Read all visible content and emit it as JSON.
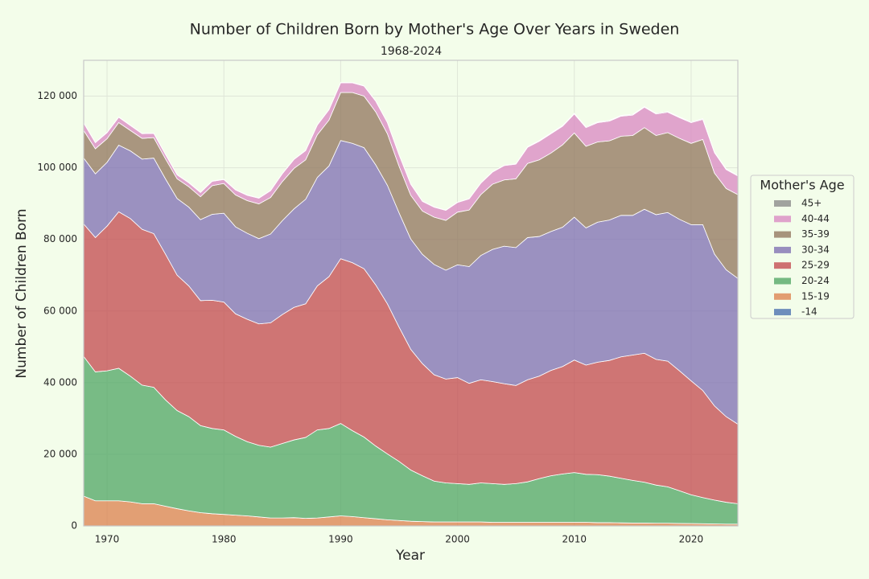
{
  "chart_data": {
    "type": "stacked_area",
    "title": "Number of Children Born by Mother's Age Over Years in Sweden",
    "subtitle": "1968-2024",
    "x_label": "Year",
    "y_label": "Number of Children Born",
    "legend_title": "Mother's Age",
    "legend_position": "right",
    "grid": true,
    "xlim": [
      1968,
      2024
    ],
    "xticks": [
      1970,
      1980,
      1990,
      2000,
      2010,
      2020
    ],
    "ylim": [
      0,
      130000
    ],
    "yticks": [
      0,
      {
        "value": 20000,
        "label": "20 000"
      },
      {
        "value": 40000,
        "label": "40 000"
      },
      {
        "value": 60000,
        "label": "60 000"
      },
      {
        "value": 80000,
        "label": "80 000"
      },
      {
        "value": 100000,
        "label": "100 000"
      },
      {
        "value": 120000,
        "label": "120 000"
      }
    ],
    "x": [
      1968,
      1969,
      1970,
      1971,
      1972,
      1973,
      1974,
      1975,
      1976,
      1977,
      1978,
      1979,
      1980,
      1981,
      1982,
      1983,
      1984,
      1985,
      1986,
      1987,
      1988,
      1989,
      1990,
      1991,
      1992,
      1993,
      1994,
      1995,
      1996,
      1997,
      1998,
      1999,
      2000,
      2001,
      2002,
      2003,
      2004,
      2005,
      2006,
      2007,
      2008,
      2009,
      2010,
      2011,
      2012,
      2013,
      2014,
      2015,
      2016,
      2017,
      2018,
      2019,
      2020,
      2021,
      2022,
      2023,
      2024
    ],
    "series": [
      {
        "name": "-14",
        "color": "#4c72b0",
        "values": [
          10,
          10,
          10,
          10,
          10,
          10,
          10,
          10,
          10,
          10,
          10,
          10,
          10,
          10,
          10,
          10,
          10,
          10,
          10,
          10,
          10,
          10,
          10,
          10,
          10,
          10,
          10,
          10,
          10,
          10,
          10,
          10,
          10,
          10,
          10,
          10,
          10,
          10,
          10,
          10,
          10,
          10,
          10,
          10,
          10,
          10,
          10,
          10,
          10,
          10,
          10,
          10,
          10,
          10,
          10,
          10,
          10
        ]
      },
      {
        "name": "15-19",
        "color": "#dd8452",
        "values": [
          8300,
          7000,
          7000,
          7000,
          6700,
          6200,
          6200,
          5500,
          4800,
          4200,
          3700,
          3400,
          3200,
          3000,
          2800,
          2500,
          2200,
          2200,
          2300,
          2100,
          2200,
          2500,
          2800,
          2600,
          2300,
          2000,
          1700,
          1500,
          1300,
          1200,
          1100,
          1100,
          1100,
          1100,
          1100,
          1000,
          1000,
          1000,
          1000,
          1000,
          1000,
          1000,
          1000,
          1000,
          900,
          900,
          850,
          800,
          800,
          750,
          750,
          700,
          650,
          600,
          550,
          500,
          500
        ]
      },
      {
        "name": "20-24",
        "color": "#55a868",
        "values": [
          39000,
          36000,
          36300,
          37000,
          35100,
          33100,
          32500,
          29700,
          27400,
          26300,
          24300,
          23800,
          23600,
          22000,
          20700,
          20000,
          19800,
          20800,
          21700,
          22600,
          24600,
          24700,
          25800,
          24000,
          22500,
          20300,
          18400,
          16500,
          14300,
          12800,
          11400,
          10900,
          10700,
          10500,
          10900,
          10800,
          10600,
          10800,
          11300,
          12200,
          13000,
          13500,
          13900,
          13400,
          13400,
          13000,
          12450,
          11900,
          11400,
          10650,
          10150,
          9100,
          8050,
          7300,
          6650,
          6100,
          5700
        ]
      },
      {
        "name": "25-29",
        "color": "#c44e52",
        "values": [
          37000,
          37500,
          40400,
          43700,
          44000,
          43500,
          42900,
          40700,
          37800,
          36500,
          34900,
          35800,
          35700,
          34200,
          34200,
          33900,
          34700,
          36000,
          37000,
          37300,
          40200,
          42400,
          46000,
          46900,
          47000,
          45000,
          41900,
          37500,
          33700,
          31300,
          29700,
          29000,
          29600,
          28200,
          28800,
          28500,
          28100,
          27400,
          28500,
          28600,
          29400,
          30000,
          31400,
          30500,
          31400,
          32300,
          33900,
          35000,
          36000,
          35100,
          35100,
          33500,
          31800,
          29900,
          26300,
          23900,
          22200
        ]
      },
      {
        "name": "30-34",
        "color": "#8172b3",
        "values": [
          18400,
          17800,
          17800,
          18600,
          18900,
          19600,
          21100,
          21000,
          21400,
          22000,
          22600,
          24000,
          24800,
          24300,
          24000,
          23800,
          24800,
          26200,
          27500,
          29200,
          30300,
          30900,
          33000,
          33300,
          33800,
          33500,
          33100,
          31900,
          30800,
          30500,
          30800,
          30400,
          31500,
          32600,
          34700,
          36900,
          38400,
          38500,
          39700,
          39000,
          38800,
          38900,
          39900,
          38300,
          39100,
          39200,
          39500,
          39000,
          40200,
          40400,
          41500,
          42300,
          43600,
          46300,
          42400,
          41000,
          40700
        ]
      },
      {
        "name": "35-39",
        "color": "#937860",
        "values": [
          7700,
          7000,
          6600,
          6300,
          5700,
          5800,
          5700,
          5600,
          5500,
          5700,
          6400,
          8000,
          8300,
          8900,
          9100,
          9700,
          10200,
          10900,
          11300,
          11000,
          11900,
          12800,
          13400,
          14200,
          14400,
          14800,
          14400,
          13000,
          12200,
          12100,
          13200,
          13900,
          14700,
          15800,
          17000,
          18200,
          18500,
          19200,
          20700,
          21400,
          21900,
          23000,
          23500,
          22800,
          22400,
          22100,
          22100,
          22300,
          22800,
          22100,
          22300,
          22600,
          22700,
          23800,
          22600,
          22700,
          23400
        ]
      },
      {
        "name": "40-44",
        "color": "#da8bc3",
        "values": [
          2100,
          1700,
          1700,
          1500,
          1400,
          1300,
          1200,
          1200,
          1100,
          1100,
          1200,
          1200,
          1100,
          1400,
          1500,
          1600,
          1900,
          2200,
          2500,
          2600,
          2700,
          2900,
          2700,
          2700,
          2800,
          3000,
          3100,
          3200,
          3100,
          2700,
          2800,
          2800,
          2700,
          3100,
          3200,
          3400,
          4000,
          4100,
          4500,
          5200,
          5400,
          5200,
          5300,
          5200,
          5400,
          5500,
          5600,
          5700,
          5700,
          6000,
          5700,
          5800,
          5800,
          5600,
          5700,
          5300,
          5200
        ]
      },
      {
        "name": "45+",
        "color": "#8c8c8c",
        "values": [
          100,
          100,
          100,
          100,
          100,
          100,
          100,
          100,
          100,
          100,
          100,
          100,
          100,
          100,
          100,
          100,
          100,
          100,
          100,
          100,
          100,
          100,
          100,
          100,
          100,
          100,
          100,
          100,
          100,
          100,
          100,
          100,
          100,
          100,
          100,
          100,
          100,
          100,
          200,
          200,
          200,
          200,
          200,
          200,
          200,
          200,
          200,
          200,
          200,
          200,
          200,
          200,
          200,
          200,
          200,
          200,
          200
        ]
      }
    ]
  }
}
